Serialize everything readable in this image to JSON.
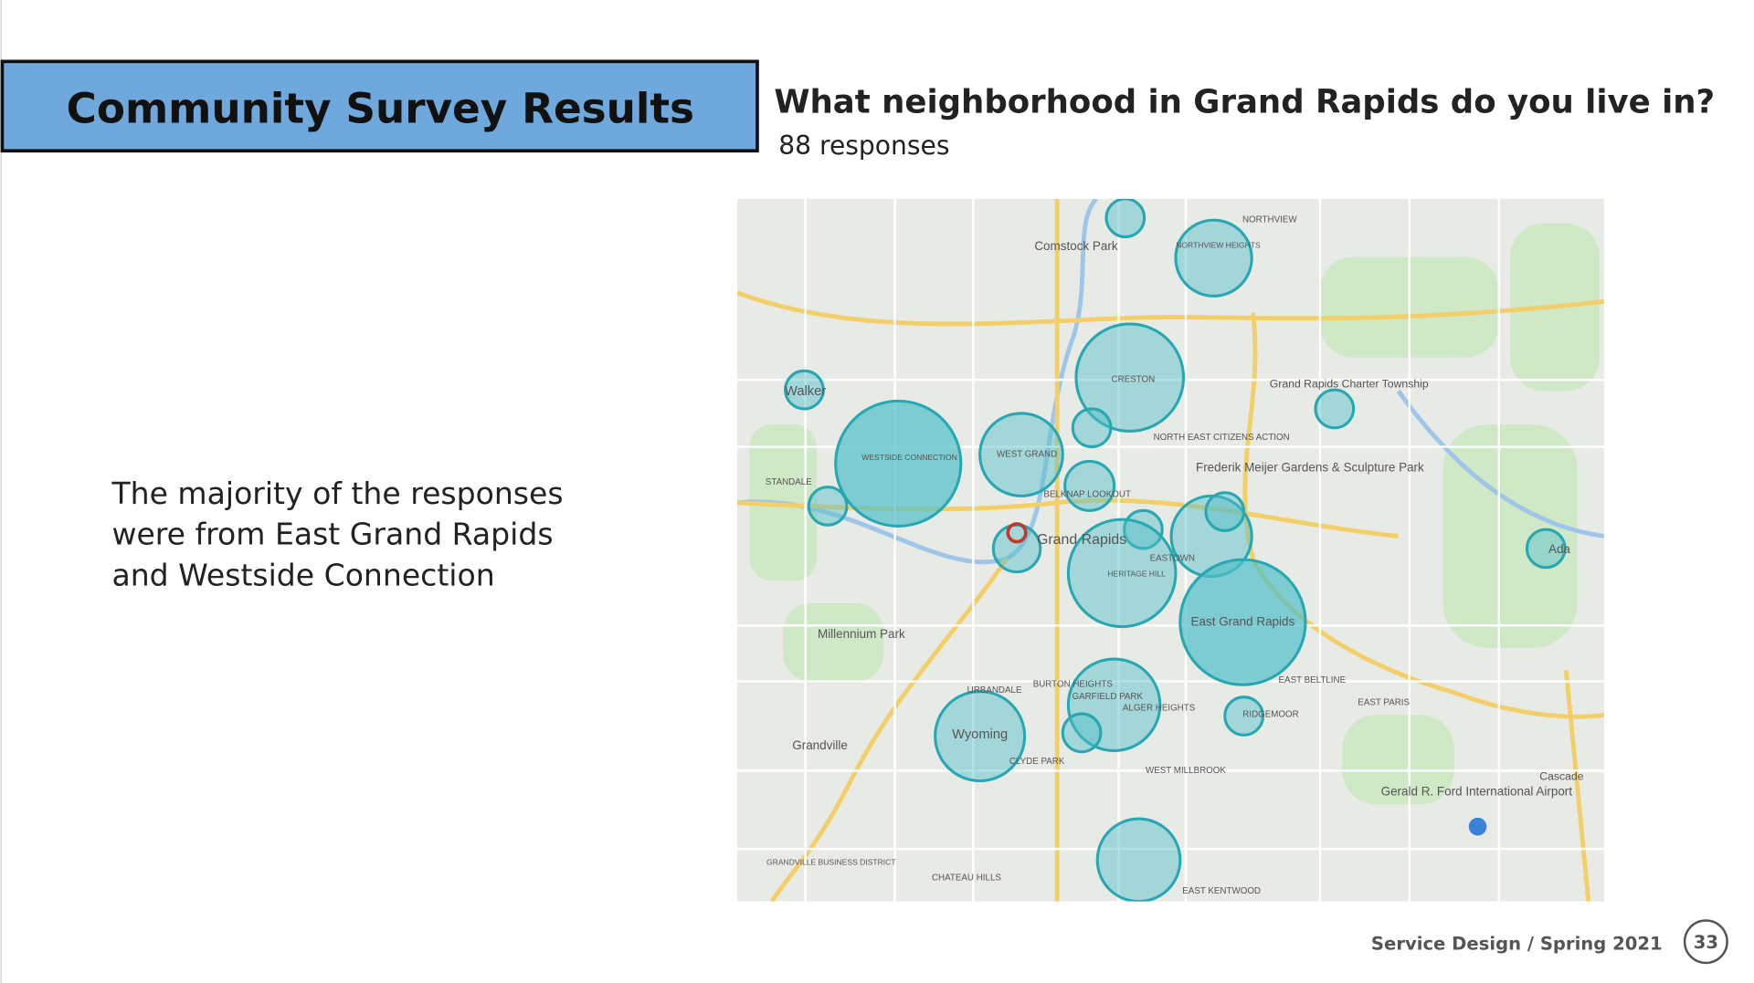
{
  "header": {
    "title": "Community Survey Results"
  },
  "question": {
    "text": "What neighborhood in Grand Rapids do you live in?",
    "responses": "88 responses"
  },
  "body": {
    "lines": [
      "The majority of the responses",
      "were from East Grand Rapids",
      "and Westside Connection"
    ]
  },
  "footer": {
    "text": "Service Design / Spring 2021",
    "page": "33"
  },
  "map": {
    "labels": [
      "Comstock Park",
      "NORTHVIEW",
      "NORTHVIEW HEIGHTS",
      "Walker",
      "WESTSIDE CONNECTION",
      "WEST GRAND",
      "CRESTON",
      "Grand Rapids Charter Township",
      "NORTH EAST CITIZENS ACTION",
      "Frederik Meijer Gardens & Sculpture Park",
      "STANDALE",
      "BELKNAP LOOKOUT",
      "Grand Rapids",
      "EASTOWN",
      "HERITAGE HILL",
      "Ada",
      "East Grand Rapids",
      "Millennium Park",
      "EAST BELTLINE",
      "EAST PARIS",
      "BURTON HEIGHTS",
      "GARFIELD PARK",
      "ALGER HEIGHTS",
      "RIDGEMOOR",
      "Wyoming",
      "URBANDALE",
      "Grandville",
      "CLYDE PARK",
      "WEST MILLBROOK",
      "Gerald R. Ford International Airport",
      "Cascade",
      "GRANDVILLE BUSINESS DISTRICT",
      "CHATEAU HILLS",
      "EAST KENTWOOD"
    ]
  }
}
